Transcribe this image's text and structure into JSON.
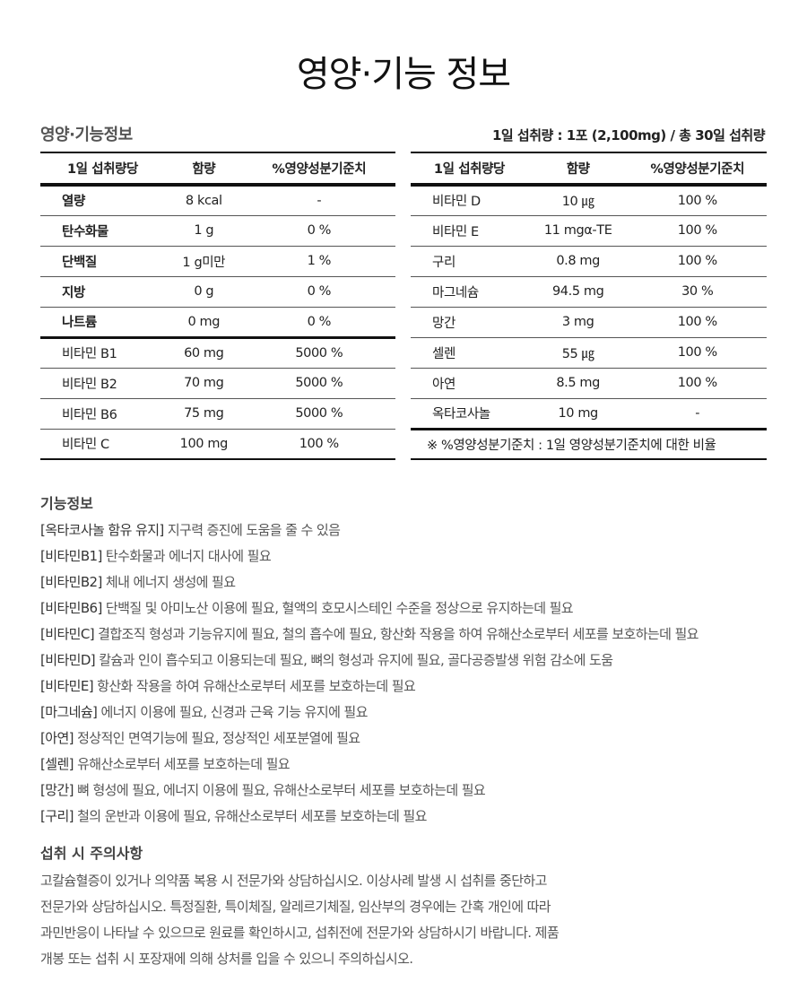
{
  "title": "영양·기능 정보",
  "left_heading": "영양·기능정보",
  "serving_info": "1일 섭취량 : 1포 (2,100mg) / 총 30일 섭취량",
  "headers": [
    "1일 섭취량당",
    "함량",
    "%영양성분기준치"
  ],
  "left_rows": [
    [
      "열량",
      "8 kcal",
      "-"
    ],
    [
      "탄수화물",
      "1 g",
      "0 %"
    ],
    [
      "단백질",
      "1 g미만",
      "1 %"
    ],
    [
      "지방",
      "0 g",
      "0 %"
    ],
    [
      "나트륨",
      "0 mg",
      "0 %"
    ],
    [
      "비타민 B1",
      "60 mg",
      "5000 %"
    ],
    [
      "비타민 B2",
      "70 mg",
      "5000 %"
    ],
    [
      "비타민 B6",
      "75 mg",
      "5000 %"
    ],
    [
      "비타민 C",
      "100 mg",
      "100 %"
    ]
  ],
  "right_rows": [
    [
      "비타민 D",
      "10 ㎍",
      "100 %"
    ],
    [
      "비타민 E",
      "11 mgα-TE",
      "100 %"
    ],
    [
      "구리",
      "0.8 mg",
      "100 %"
    ],
    [
      "마그네슘",
      "94.5 mg",
      "30 %"
    ],
    [
      "망간",
      "3 mg",
      "100 %"
    ],
    [
      "셀렌",
      "55 ㎍",
      "100 %"
    ],
    [
      "아연",
      "8.5 mg",
      "100 %"
    ],
    [
      "옥타코사놀",
      "10 mg",
      "-"
    ]
  ],
  "note": "※ %영양성분기준치 : 1일 영양성분기준치에 대한 비율",
  "function_heading": "기능정보",
  "functions": [
    [
      "[옥타코사놀 함유 유지]",
      "지구력 증진에 도움을 줄 수 있음"
    ],
    [
      "[비타민B1]",
      "탄수화물과 에너지 대사에 필요"
    ],
    [
      "[비타민B2]",
      "체내 에너지 생성에 필요"
    ],
    [
      "[비타민B6]",
      "단백질 및 아미노산 이용에 필요, 혈액의 호모시스테인 수준을 정상으로 유지하는데 필요"
    ],
    [
      "[비타민C]",
      "결합조직 형성과 기능유지에 필요, 철의 흡수에 필요, 항산화 작용을 하여 유해산소로부터 세포를 보호하는데 필요"
    ],
    [
      "[비타민D]",
      "칼슘과 인이 흡수되고 이용되는데 필요, 뼈의 형성과 유지에 필요, 골다공증발생 위험 감소에 도움"
    ],
    [
      "[비타민E]",
      "항산화 작용을 하여 유해산소로부터 세포를 보호하는데 필요"
    ],
    [
      "[마그네슘]",
      "에너지 이용에 필요, 신경과 근육 기능 유지에 필요"
    ],
    [
      "[아연]",
      "정상적인 면역기능에 필요, 정상적인 세포분열에 필요"
    ],
    [
      "[셀렌]",
      "유해산소로부터 세포를 보호하는데 필요"
    ],
    [
      "[망간]",
      "뼈 형성에 필요, 에너지 이용에 필요, 유해산소로부터 세포를 보호하는데 필요"
    ],
    [
      "[구리]",
      "철의 운반과 이용에 필요, 유해산소로부터 세포를 보호하는데 필요"
    ]
  ],
  "caution_heading": "섭취 시 주의사항",
  "caution_lines": [
    "고칼슘혈증이 있거나 의약품 복용 시 전문가와 상담하십시오. 이상사례 발생 시 섭취를 중단하고",
    "전문가와 상담하십시오. 특정질환, 특이체질, 알레르기체질, 임산부의 경우에는 간혹 개인에 따라",
    "과민반응이 나타날 수 있으므로 원료를 확인하시고, 섭취전에 전문가와 상담하시기 바랍니다. 제품",
    "개봉 또는 섭취 시 포장재에 의해 상처를 입을 수 있으니 주의하십시오."
  ]
}
